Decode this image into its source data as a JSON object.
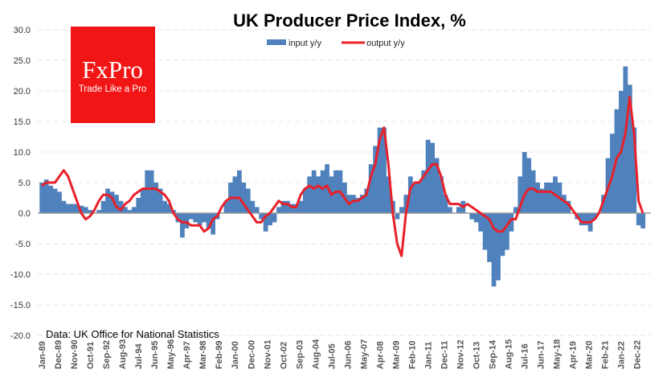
{
  "chart_data": {
    "type": "bar+line",
    "title": "UK Producer Price Index, %",
    "note": "Data: UK Office for National Statistics",
    "logo": {
      "brand": "FxPro",
      "tagline": "Trade Like a Pro",
      "color": "#F21515"
    },
    "legend": {
      "position": "top-center",
      "entries": [
        "input y/y",
        "output y/y"
      ]
    },
    "ylim": [
      -20,
      30
    ],
    "yticks": [
      "30.0",
      "25.0",
      "20.0",
      "15.0",
      "10.0",
      "5.0",
      "0.0",
      "-5.0",
      "-10.0",
      "-15.0",
      "-20.0"
    ],
    "ytick_values": [
      30,
      25,
      20,
      15,
      10,
      5,
      0,
      -5,
      -10,
      -15,
      -20
    ],
    "grid": true,
    "xticks": [
      "Jan-89",
      "Dec-89",
      "Nov-90",
      "Oct-91",
      "Sep-92",
      "Aug-93",
      "Jul-94",
      "Jun-95",
      "May-96",
      "Apr-97",
      "Mar-98",
      "Feb-99",
      "Jan-00",
      "Dec-00",
      "Nov-01",
      "Oct-02",
      "Sep-03",
      "Aug-04",
      "Jul-05",
      "Jun-06",
      "May-07",
      "Apr-08",
      "Mar-09",
      "Feb-10",
      "Jan-11",
      "Dec-11",
      "Nov-12",
      "Oct-13",
      "Sep-14",
      "Aug-15",
      "Jul-16",
      "Jun-17",
      "May-18",
      "Apr-19",
      "Mar-20",
      "Feb-21",
      "Jan-22",
      "Dec-22"
    ],
    "x_start": "Jan-89",
    "x_step_months": 3,
    "series": [
      {
        "name": "input y/y",
        "type": "bar",
        "color": "#4F81BD",
        "values": [
          5,
          5.5,
          4.5,
          4,
          3.5,
          2,
          1.5,
          1.5,
          1.5,
          1.2,
          1,
          0.5,
          0,
          0.5,
          2,
          4,
          3.5,
          3,
          2,
          1,
          0.5,
          1,
          2.5,
          4,
          7,
          7,
          5,
          4,
          2,
          1.5,
          0.5,
          -1.5,
          -4,
          -2.5,
          -1,
          -1.5,
          -2,
          -1.5,
          -2.5,
          -3.5,
          -1,
          0,
          2,
          5,
          6,
          7,
          5,
          4,
          2,
          1,
          -1,
          -3,
          -2,
          -1.5,
          1,
          2,
          2,
          1.5,
          1.5,
          2,
          4,
          6,
          7,
          6,
          7,
          8,
          6,
          7,
          7,
          5,
          3,
          3,
          2.5,
          3,
          4,
          8,
          11,
          14,
          14,
          6,
          2,
          -1,
          1,
          3,
          6,
          5,
          5,
          7,
          12,
          11.5,
          9,
          6,
          3,
          1,
          0,
          1,
          2,
          0,
          -1,
          -1.5,
          -3,
          -6,
          -8,
          -12,
          -11,
          -7,
          -6,
          -3,
          1,
          6,
          10,
          9,
          7,
          5,
          4,
          5,
          5,
          6,
          5,
          3,
          2,
          0,
          -1,
          -2,
          -2,
          -3,
          -1,
          0,
          3,
          9,
          13,
          17,
          20,
          24,
          21,
          14,
          -2,
          -2.5
        ]
      },
      {
        "name": "output y/y",
        "type": "line",
        "color": "#E8202A",
        "values": [
          4.5,
          5,
          5,
          5,
          6,
          7,
          6,
          4,
          2,
          0,
          -1,
          -0.5,
          0.5,
          2,
          3,
          3,
          2.5,
          1,
          0.5,
          1.5,
          2,
          3,
          3.5,
          4,
          4,
          4,
          4,
          3.5,
          3,
          2,
          0,
          -1,
          -1.5,
          -1.5,
          -2,
          -2,
          -2,
          -3,
          -2.5,
          -1,
          -0.5,
          1,
          2,
          2.5,
          2.5,
          2.5,
          1.5,
          0.5,
          -0.5,
          -1.5,
          -1.5,
          -0.5,
          0,
          1,
          2,
          1.5,
          1.5,
          1,
          1,
          3,
          4,
          4.5,
          4,
          4.5,
          4,
          4.5,
          3,
          3.5,
          3.5,
          2.5,
          1.5,
          2,
          2,
          2.5,
          3,
          6,
          8,
          12,
          14,
          8,
          0,
          -5,
          -7,
          0,
          4,
          5,
          5,
          6,
          7,
          8,
          8,
          6,
          3,
          1.5,
          1.5,
          1.5,
          1,
          1.5,
          1,
          0.5,
          0,
          -0.5,
          -1,
          -2.5,
          -3,
          -3,
          -2,
          -1,
          -1,
          1,
          3,
          4,
          4,
          3.5,
          3.5,
          3.5,
          3.5,
          3,
          2.5,
          2,
          1.5,
          0.5,
          -0.5,
          -1.5,
          -1.5,
          -1.5,
          -1,
          0,
          2,
          4,
          6,
          9,
          10,
          13,
          19,
          13,
          2,
          0
        ]
      }
    ]
  }
}
